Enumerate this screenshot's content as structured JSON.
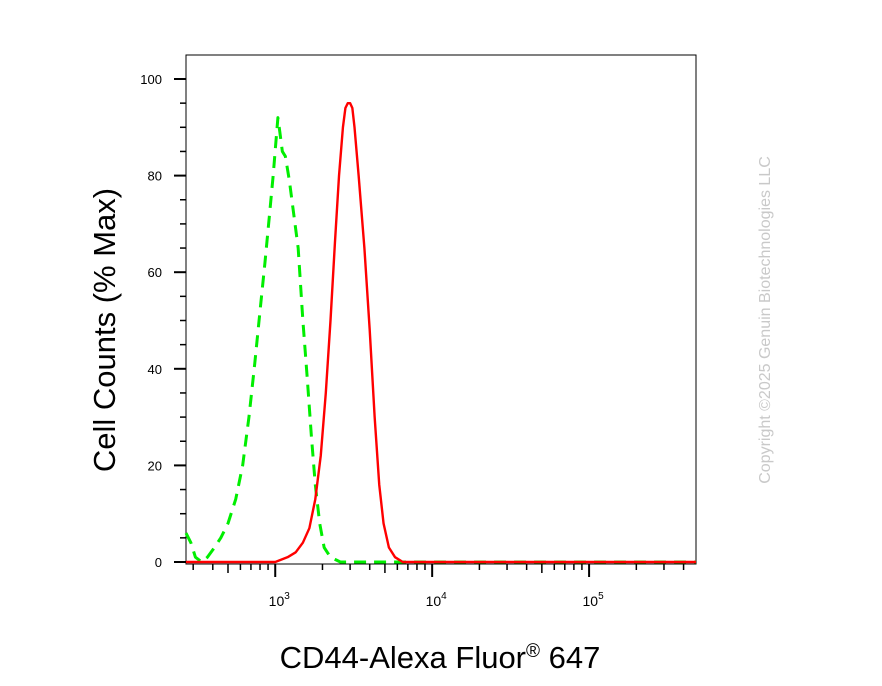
{
  "chart_data": {
    "type": "line",
    "xlabel": "CD44-Alexa Fluor",
    "xlabel_mark": "®",
    "xlabel_suffix": " 647",
    "ylabel": "Cell Counts (% Max)",
    "xscale": "log",
    "xlim": [
      270,
      480000
    ],
    "ylim": [
      0,
      100
    ],
    "y_ticks": [
      0,
      20,
      40,
      60,
      80,
      100
    ],
    "x_major_ticks": [
      {
        "value": 1000,
        "base": "10",
        "exp": "3"
      },
      {
        "value": 10000,
        "base": "10",
        "exp": "4"
      },
      {
        "value": 100000,
        "base": "10",
        "exp": "5"
      }
    ],
    "grid": false,
    "legend": "none",
    "series": [
      {
        "color": "#00ee00",
        "dash": true,
        "points": [
          [
            270,
            6
          ],
          [
            290,
            4
          ],
          [
            310,
            1
          ],
          [
            340,
            0
          ],
          [
            370,
            1
          ],
          [
            410,
            3
          ],
          [
            450,
            5
          ],
          [
            500,
            8
          ],
          [
            560,
            13
          ],
          [
            620,
            20
          ],
          [
            680,
            30
          ],
          [
            740,
            41
          ],
          [
            800,
            52
          ],
          [
            860,
            62
          ],
          [
            920,
            72
          ],
          [
            970,
            80
          ],
          [
            1010,
            87
          ],
          [
            1040,
            92
          ],
          [
            1070,
            89
          ],
          [
            1110,
            85
          ],
          [
            1160,
            84
          ],
          [
            1230,
            79
          ],
          [
            1300,
            73
          ],
          [
            1400,
            65
          ],
          [
            1500,
            50
          ],
          [
            1600,
            38
          ],
          [
            1700,
            26
          ],
          [
            1800,
            16
          ],
          [
            1920,
            8
          ],
          [
            2050,
            3
          ],
          [
            2250,
            1
          ],
          [
            2600,
            0
          ],
          [
            5000,
            0
          ],
          [
            480000,
            0
          ]
        ]
      },
      {
        "color": "#ff0000",
        "dash": false,
        "points": [
          [
            270,
            0
          ],
          [
            1000,
            0
          ],
          [
            1200,
            1
          ],
          [
            1350,
            2
          ],
          [
            1500,
            4
          ],
          [
            1650,
            7
          ],
          [
            1800,
            13
          ],
          [
            1950,
            22
          ],
          [
            2100,
            35
          ],
          [
            2250,
            50
          ],
          [
            2400,
            66
          ],
          [
            2550,
            80
          ],
          [
            2700,
            90
          ],
          [
            2800,
            94
          ],
          [
            2900,
            95
          ],
          [
            3000,
            95
          ],
          [
            3100,
            94
          ],
          [
            3200,
            90
          ],
          [
            3400,
            80
          ],
          [
            3700,
            65
          ],
          [
            4000,
            48
          ],
          [
            4300,
            30
          ],
          [
            4600,
            16
          ],
          [
            4900,
            8
          ],
          [
            5300,
            3
          ],
          [
            5800,
            1
          ],
          [
            6500,
            0
          ],
          [
            480000,
            0
          ]
        ]
      }
    ]
  },
  "watermark": "Copyright ©2025 Genuin Biotechnologies LLC"
}
